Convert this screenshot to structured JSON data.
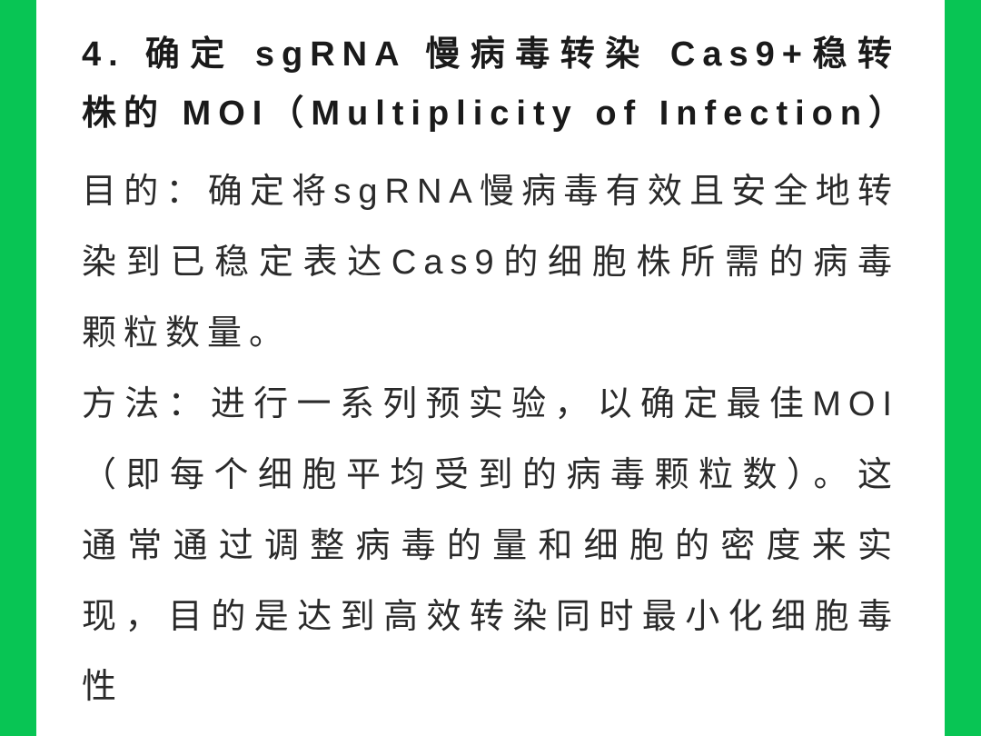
{
  "colors": {
    "background": "#08c554",
    "content_bg": "#ffffff",
    "heading_color": "#1a1a1a",
    "body_color": "#2a2a2a"
  },
  "typography": {
    "heading_fontsize": 38,
    "heading_weight": 700,
    "body_fontsize": 38,
    "body_weight": 400,
    "letter_spacing": 8,
    "line_height_heading": 1.7,
    "line_height_body": 2.05
  },
  "section": {
    "heading": "4. 确定 sgRNA 慢病毒转染 Cas9+稳转株的 MOI（Multiplicity of Infection）",
    "purpose_label": "目的：",
    "purpose_text": "确定将sgRNA慢病毒有效且安全地转染到已稳定表达Cas9的细胞株所需的病毒颗粒数量。",
    "method_label": "方法：",
    "method_text": "进行一系列预实验，以确定最佳MOI（即每个细胞平均受到的病毒颗粒数）。这通常通过调整病毒的量和细胞的密度来实现，目的是达到高效转染同时最小化细胞毒性"
  }
}
